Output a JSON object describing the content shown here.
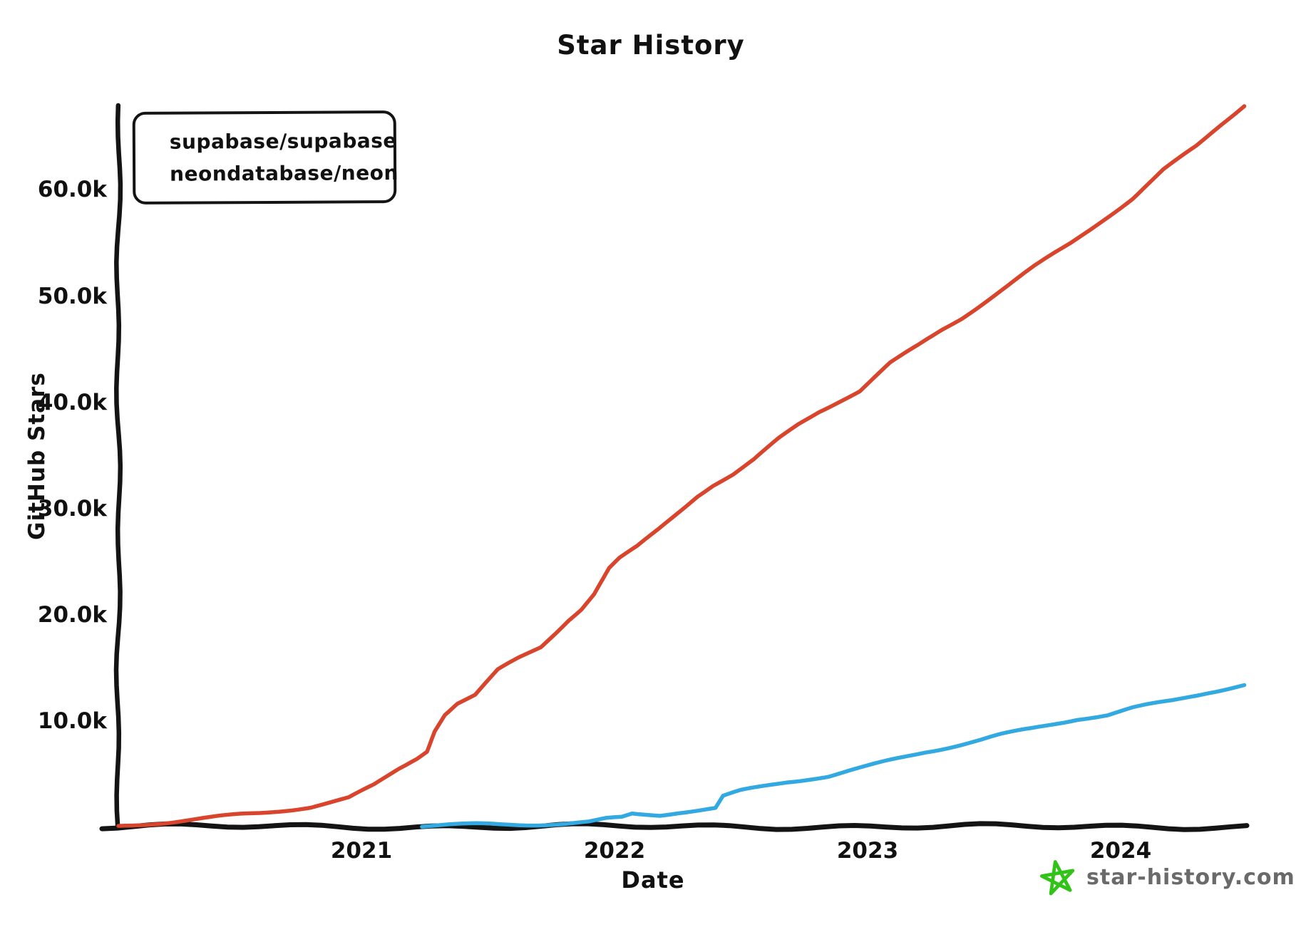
{
  "header": {
    "title": "Star History"
  },
  "legend": {
    "position": "top-left",
    "items": [
      {
        "label": "supabase/supabase",
        "swatch_color": "#d9452c",
        "icon": "supabase-logo",
        "icon_colors": {
          "bg": "#1f2121",
          "bolt": "#3ecf8e"
        }
      },
      {
        "label": "neondatabase/neon",
        "swatch_color": "#2e9bd6",
        "icon": "neon-logo",
        "icon_colors": {
          "start": "#00c16a",
          "end": "#00b3d1",
          "mark": "#12b76a"
        }
      }
    ]
  },
  "watermark": {
    "text": "star-history.com",
    "icon": "star",
    "icon_color": "#31c318",
    "text_color": "#6a6a6a"
  },
  "chart_data": {
    "type": "line",
    "title": "Star History",
    "xlabel": "Date",
    "ylabel": "GitHub Stars",
    "grid": false,
    "legend_position": "top-left",
    "xlim": [
      2020.04,
      2024.5
    ],
    "ylim": [
      0,
      70000
    ],
    "x_ticks": [
      {
        "label": "2021",
        "value": 2021
      },
      {
        "label": "2022",
        "value": 2022
      },
      {
        "label": "2023",
        "value": 2023
      },
      {
        "label": "2024",
        "value": 2024
      }
    ],
    "y_ticks": [
      {
        "label": "60.0k",
        "value": 60000
      },
      {
        "label": "50.0k",
        "value": 50000
      },
      {
        "label": "40.0k",
        "value": 40000
      },
      {
        "label": "30.0k",
        "value": 30000
      },
      {
        "label": "20.0k",
        "value": 20000
      },
      {
        "label": "10.0k",
        "value": 10000
      }
    ],
    "series": [
      {
        "name": "supabase/supabase",
        "color": "#d9452c",
        "points": [
          [
            2020.04,
            20
          ],
          [
            2020.2,
            350
          ],
          [
            2020.4,
            800
          ],
          [
            2020.6,
            1300
          ],
          [
            2020.8,
            2000
          ],
          [
            2020.95,
            2800
          ],
          [
            2021.05,
            4000
          ],
          [
            2021.15,
            5600
          ],
          [
            2021.22,
            6600
          ],
          [
            2021.26,
            7300
          ],
          [
            2021.29,
            9200
          ],
          [
            2021.33,
            10700
          ],
          [
            2021.38,
            11700
          ],
          [
            2021.45,
            12400
          ],
          [
            2021.54,
            14700
          ],
          [
            2021.62,
            15800
          ],
          [
            2021.71,
            16900
          ],
          [
            2021.77,
            18300
          ],
          [
            2021.82,
            19500
          ],
          [
            2021.87,
            20500
          ],
          [
            2021.92,
            21900
          ],
          [
            2021.98,
            24300
          ],
          [
            2022.02,
            25200
          ],
          [
            2022.09,
            26300
          ],
          [
            2022.17,
            27900
          ],
          [
            2022.25,
            29600
          ],
          [
            2022.33,
            31300
          ],
          [
            2022.39,
            32300
          ],
          [
            2022.47,
            33300
          ],
          [
            2022.55,
            34600
          ],
          [
            2022.65,
            36600
          ],
          [
            2022.73,
            38000
          ],
          [
            2022.81,
            39200
          ],
          [
            2022.9,
            40300
          ],
          [
            2022.97,
            41100
          ],
          [
            2023.09,
            43600
          ],
          [
            2023.2,
            45200
          ],
          [
            2023.3,
            46800
          ],
          [
            2023.37,
            47800
          ],
          [
            2023.5,
            50000
          ],
          [
            2023.66,
            52700
          ],
          [
            2023.8,
            54900
          ],
          [
            2023.94,
            57400
          ],
          [
            2024.05,
            59300
          ],
          [
            2024.17,
            61900
          ],
          [
            2024.3,
            64100
          ],
          [
            2024.4,
            66200
          ],
          [
            2024.49,
            68000
          ]
        ]
      },
      {
        "name": "neondatabase/neon",
        "color": "#32a9e0",
        "points": [
          [
            2021.24,
            60
          ],
          [
            2021.35,
            160
          ],
          [
            2021.5,
            300
          ],
          [
            2021.65,
            360
          ],
          [
            2021.8,
            420
          ],
          [
            2021.9,
            520
          ],
          [
            2021.97,
            820
          ],
          [
            2022.03,
            950
          ],
          [
            2022.07,
            1300
          ],
          [
            2022.12,
            1250
          ],
          [
            2022.18,
            1200
          ],
          [
            2022.25,
            1420
          ],
          [
            2022.33,
            1560
          ],
          [
            2022.4,
            1700
          ],
          [
            2022.43,
            2800
          ],
          [
            2022.5,
            3300
          ],
          [
            2022.6,
            3800
          ],
          [
            2022.68,
            4200
          ],
          [
            2022.76,
            4500
          ],
          [
            2022.85,
            4800
          ],
          [
            2022.95,
            5400
          ],
          [
            2023.0,
            5700
          ],
          [
            2023.12,
            6500
          ],
          [
            2023.23,
            7200
          ],
          [
            2023.35,
            7800
          ],
          [
            2023.45,
            8300
          ],
          [
            2023.52,
            8700
          ],
          [
            2023.65,
            9300
          ],
          [
            2023.75,
            9800
          ],
          [
            2023.83,
            10200
          ],
          [
            2023.95,
            10500
          ],
          [
            2024.05,
            11100
          ],
          [
            2024.2,
            11800
          ],
          [
            2024.35,
            12700
          ],
          [
            2024.49,
            13400
          ]
        ]
      }
    ]
  }
}
